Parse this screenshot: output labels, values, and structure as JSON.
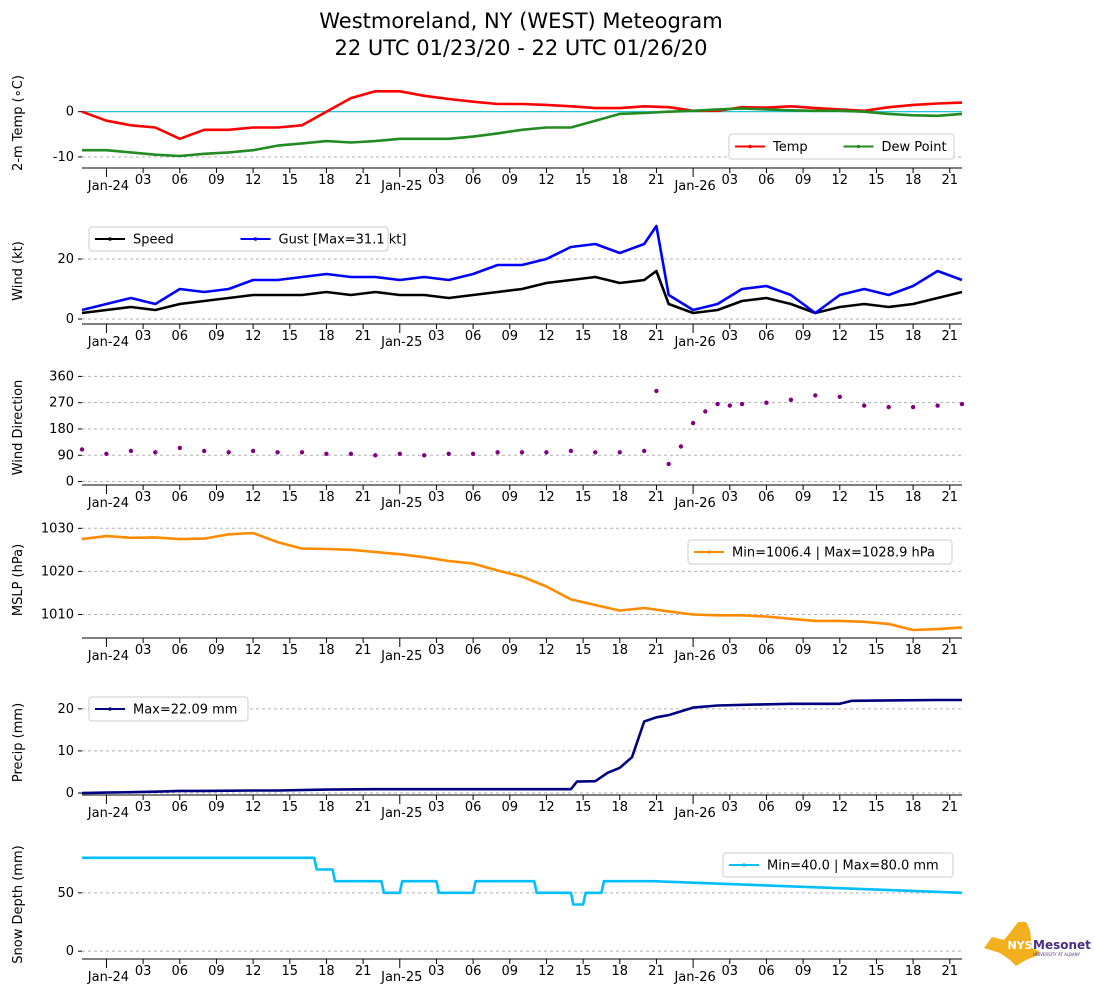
{
  "title_line1": "Westmoreland, NY (WEST) Meteogram",
  "title_line2": "22 UTC 01/23/20 - 22 UTC 01/26/20",
  "logo": {
    "badge": "NYS",
    "name": "Mesonet",
    "sub": "UNIVERSITY AT ALBANY"
  },
  "colors": {
    "temp": "#ff0000",
    "dew": "#228b22",
    "zero_line": "#00bcd4",
    "speed": "#000000",
    "gust": "#0000ff",
    "dir": "#800080",
    "mslp": "#ff8c00",
    "precip": "#000080",
    "snow": "#00bfff",
    "logo_gold": "#f2b01e",
    "logo_purple": "#4b2e83"
  },
  "chart_data": [
    {
      "type": "line",
      "name": "temperature",
      "ylabel": "2-m Temp (∘C)",
      "ylim": [
        -12,
        7
      ],
      "yticks": [
        0,
        -10
      ],
      "grid": "y-dashed",
      "zero_line": 0,
      "legend": {
        "position": "bottom-right",
        "entries": [
          "Temp",
          "Dew Point"
        ]
      },
      "x_hours": [
        0,
        2,
        4,
        6,
        8,
        10,
        12,
        14,
        16,
        18,
        20,
        22,
        24,
        26,
        28,
        30,
        32,
        34,
        36,
        38,
        40,
        42,
        44,
        46,
        48,
        50,
        52,
        54,
        56,
        58,
        60,
        62,
        64,
        66,
        68,
        70,
        72
      ],
      "series": [
        {
          "name": "Temp",
          "values": [
            0.0,
            -2.0,
            -3.0,
            -3.5,
            -6.0,
            -4.0,
            -4.0,
            -3.5,
            -3.5,
            -3.0,
            0.0,
            3.0,
            4.5,
            4.5,
            3.5,
            2.8,
            2.2,
            1.7,
            1.7,
            1.5,
            1.2,
            0.8,
            0.8,
            1.2,
            1.0,
            0.2,
            0.2,
            1.0,
            0.9,
            1.2,
            0.8,
            0.5,
            0.2,
            1.0,
            1.5,
            1.8,
            2.0
          ]
        },
        {
          "name": "Dew Point",
          "values": [
            -8.5,
            -8.5,
            -9.0,
            -9.5,
            -9.8,
            -9.3,
            -9.0,
            -8.5,
            -7.5,
            -7.0,
            -6.5,
            -6.8,
            -6.5,
            -6.0,
            -6.0,
            -6.0,
            -5.5,
            -4.8,
            -4.0,
            -3.5,
            -3.5,
            -2.0,
            -0.5,
            -0.3,
            0.0,
            0.2,
            0.5,
            0.7,
            0.5,
            0.3,
            0.2,
            0.2,
            0.0,
            -0.5,
            -0.8,
            -0.9,
            -0.5
          ]
        }
      ]
    },
    {
      "type": "line",
      "name": "wind",
      "ylabel": "Wind (kt)",
      "ylim": [
        -1,
        33
      ],
      "yticks": [
        20,
        0
      ],
      "grid": "y-dashed",
      "legend": {
        "position": "top-left",
        "entries": [
          "Speed",
          "Gust [Max=31.1 kt]"
        ]
      },
      "x_hours": [
        0,
        2,
        4,
        6,
        8,
        10,
        12,
        14,
        16,
        18,
        20,
        22,
        24,
        26,
        28,
        30,
        32,
        34,
        36,
        38,
        40,
        42,
        44,
        46,
        47,
        48,
        50,
        52,
        54,
        56,
        58,
        60,
        62,
        64,
        66,
        68,
        70,
        72
      ],
      "series": [
        {
          "name": "Speed",
          "values": [
            2,
            3,
            4,
            3,
            5,
            6,
            7,
            8,
            8,
            8,
            9,
            8,
            9,
            8,
            8,
            7,
            8,
            9,
            10,
            12,
            13,
            14,
            12,
            13,
            16,
            5,
            2,
            3,
            6,
            7,
            5,
            2,
            4,
            5,
            4,
            5,
            7,
            9
          ]
        },
        {
          "name": "Gust",
          "values": [
            3,
            5,
            7,
            5,
            10,
            9,
            10,
            13,
            13,
            14,
            15,
            14,
            14,
            13,
            14,
            13,
            15,
            18,
            18,
            20,
            24,
            25,
            22,
            25,
            31,
            8,
            3,
            5,
            10,
            11,
            8,
            2,
            8,
            10,
            8,
            11,
            16,
            13
          ]
        }
      ]
    },
    {
      "type": "scatter",
      "name": "wind_direction",
      "ylabel": "Wind Direction",
      "ylim": [
        -5,
        375
      ],
      "yticks": [
        360,
        270,
        180,
        90,
        0
      ],
      "grid": "y-dashed",
      "x_hours": [
        0,
        2,
        4,
        6,
        8,
        10,
        12,
        14,
        16,
        18,
        20,
        22,
        24,
        26,
        28,
        30,
        32,
        34,
        36,
        38,
        40,
        42,
        44,
        46,
        47,
        48,
        49,
        50,
        51,
        52,
        53,
        54,
        56,
        58,
        60,
        62,
        64,
        66,
        68,
        70,
        72
      ],
      "series": [
        {
          "name": "Direction",
          "values": [
            110,
            95,
            105,
            100,
            115,
            105,
            100,
            105,
            100,
            100,
            95,
            95,
            90,
            95,
            90,
            95,
            95,
            100,
            100,
            100,
            105,
            100,
            100,
            105,
            310,
            60,
            120,
            200,
            240,
            265,
            260,
            265,
            270,
            280,
            295,
            290,
            260,
            255,
            255,
            260,
            265
          ]
        }
      ]
    },
    {
      "type": "line",
      "name": "mslp",
      "ylabel": "MSLP (hPa)",
      "ylim": [
        1005,
        1031
      ],
      "yticks": [
        1030,
        1020,
        1010
      ],
      "grid": "y-dashed",
      "legend": {
        "position": "top-right",
        "entries": [
          "Min=1006.4 | Max=1028.9 hPa"
        ]
      },
      "x_hours": [
        0,
        2,
        4,
        6,
        8,
        10,
        12,
        14,
        16,
        18,
        20,
        22,
        24,
        26,
        28,
        30,
        32,
        34,
        36,
        38,
        40,
        42,
        44,
        46,
        48,
        50,
        52,
        54,
        56,
        58,
        60,
        62,
        64,
        66,
        68,
        70,
        72
      ],
      "series": [
        {
          "name": "MSLP",
          "values": [
            1027.5,
            1028.2,
            1027.8,
            1027.9,
            1027.5,
            1027.6,
            1028.6,
            1028.9,
            1026.8,
            1025.3,
            1025.2,
            1025.0,
            1024.5,
            1024.0,
            1023.3,
            1022.4,
            1021.8,
            1020.2,
            1018.8,
            1016.5,
            1013.5,
            1012.2,
            1010.9,
            1011.5,
            1010.7,
            1010.0,
            1009.8,
            1009.8,
            1009.5,
            1009.0,
            1008.5,
            1008.5,
            1008.3,
            1007.8,
            1006.4,
            1006.6,
            1007.0
          ]
        }
      ]
    },
    {
      "type": "line",
      "name": "precip",
      "ylabel": "Precip (mm)",
      "ylim": [
        0,
        24
      ],
      "yticks": [
        20,
        10,
        0
      ],
      "grid": "y-dashed",
      "legend": {
        "position": "top-left",
        "entries": [
          "Max=22.09 mm"
        ]
      },
      "x_hours": [
        0,
        2,
        4,
        6,
        8,
        10,
        14,
        16,
        20,
        24,
        28,
        32,
        36,
        40,
        40.5,
        42,
        43,
        44,
        45,
        46,
        47,
        48,
        50,
        52,
        55,
        58,
        60,
        62,
        63,
        66,
        70,
        72
      ],
      "series": [
        {
          "name": "Precip",
          "values": [
            0.0,
            0.1,
            0.2,
            0.3,
            0.5,
            0.5,
            0.6,
            0.6,
            0.8,
            0.9,
            0.9,
            0.9,
            0.9,
            0.9,
            2.7,
            2.8,
            4.8,
            6.0,
            8.5,
            17.0,
            18.0,
            18.5,
            20.3,
            20.8,
            21.0,
            21.2,
            21.2,
            21.2,
            21.9,
            22.0,
            22.09,
            22.09
          ]
        }
      ]
    },
    {
      "type": "line",
      "name": "snow_depth",
      "ylabel": "Snow Depth (mm)",
      "ylim": [
        -5,
        85
      ],
      "yticks": [
        50,
        0
      ],
      "grid": "y-dashed",
      "legend": {
        "position": "top-right",
        "entries": [
          "Min=40.0 | Max=80.0 mm"
        ]
      },
      "x_hours": [
        0,
        19,
        19.2,
        20.5,
        20.7,
        24.5,
        24.7,
        26,
        26.2,
        29,
        29.2,
        32,
        32.2,
        37,
        37.2,
        40,
        40.2,
        41,
        41.2,
        42.5,
        42.7,
        46.5,
        46.7,
        72
      ],
      "series": [
        {
          "name": "Snow Depth",
          "values": [
            80,
            80,
            70,
            70,
            60,
            60,
            50,
            50,
            60,
            60,
            50,
            50,
            60,
            60,
            50,
            50,
            40,
            40,
            50,
            50,
            60,
            60,
            60,
            50
          ]
        }
      ]
    }
  ],
  "x_tick_labels": [
    "Jan-24",
    "03",
    "06",
    "09",
    "12",
    "15",
    "18",
    "21",
    "Jan-25",
    "03",
    "06",
    "09",
    "12",
    "15",
    "18",
    "21",
    "Jan-26",
    "03",
    "06",
    "09",
    "12",
    "15",
    "18",
    "21"
  ]
}
